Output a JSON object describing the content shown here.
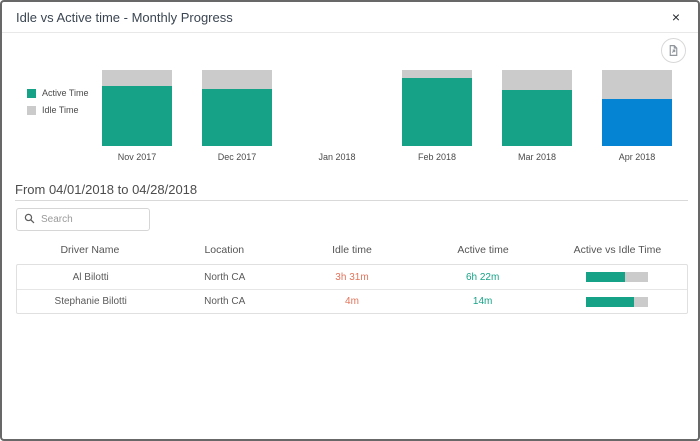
{
  "modal": {
    "title": "Idle vs Active time - Monthly Progress",
    "close_label": "×"
  },
  "toolbar": {
    "export_icon": "file-export"
  },
  "chart_data": {
    "type": "bar",
    "stacked": true,
    "unit": "percent_of_bar_height",
    "categories": [
      "Nov 2017",
      "Dec 2017",
      "Jan 2018",
      "Feb 2018",
      "Mar 2018",
      "Apr 2018"
    ],
    "series": [
      {
        "name": "Active Time",
        "color": "#16a287",
        "values": [
          79,
          75,
          0,
          89,
          74,
          62
        ]
      },
      {
        "name": "Idle Time",
        "color": "#cbcbcb",
        "values": [
          21,
          25,
          0,
          11,
          26,
          38
        ]
      }
    ],
    "selected_category": "Apr 2018",
    "selected_color": "#0584d4",
    "legend_position": "left",
    "ylim": [
      0,
      100
    ],
    "grid": false
  },
  "filter": {
    "range_label": "From 04/01/2018 to 04/28/2018",
    "search_placeholder": "Search"
  },
  "table": {
    "columns": [
      "Driver Name",
      "Location",
      "Idle time",
      "Active time",
      "Active vs Idle Time"
    ],
    "rows": [
      {
        "driver": "Al Bilotti",
        "location": "North CA",
        "idle": "3h 31m",
        "active": "6h 22m",
        "active_pct": 64
      },
      {
        "driver": "Stephanie Bilotti",
        "location": "North CA",
        "idle": "4m",
        "active": "14m",
        "active_pct": 78
      }
    ]
  },
  "colors": {
    "active": "#16a287",
    "idle": "#cbcbcb",
    "selected": "#0584d4",
    "idle_text": "#e2745b",
    "active_text": "#16a287"
  }
}
